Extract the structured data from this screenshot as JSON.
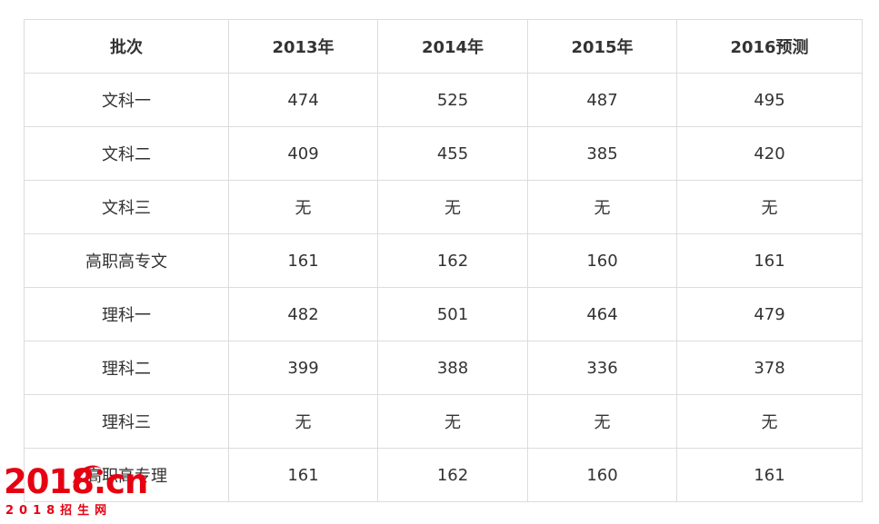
{
  "table": {
    "headers": [
      "批次",
      "2013年",
      "2014年",
      "2015年",
      "2016预测"
    ],
    "rows": [
      [
        "文科一",
        "474",
        "525",
        "487",
        "495"
      ],
      [
        "文科二",
        "409",
        "455",
        "385",
        "420"
      ],
      [
        "文科三",
        "无",
        "无",
        "无",
        "无"
      ],
      [
        "高职高专文",
        "161",
        "162",
        "160",
        "161"
      ],
      [
        "理科一",
        "482",
        "501",
        "464",
        "479"
      ],
      [
        "理科二",
        "399",
        "388",
        "336",
        "378"
      ],
      [
        "理科三",
        "无",
        "无",
        "无",
        "无"
      ],
      [
        "高职高专理",
        "161",
        "162",
        "160",
        "161"
      ]
    ]
  },
  "watermark": {
    "main": "2018.cn",
    "sub": "2018招生网",
    "color": "#e60012"
  }
}
